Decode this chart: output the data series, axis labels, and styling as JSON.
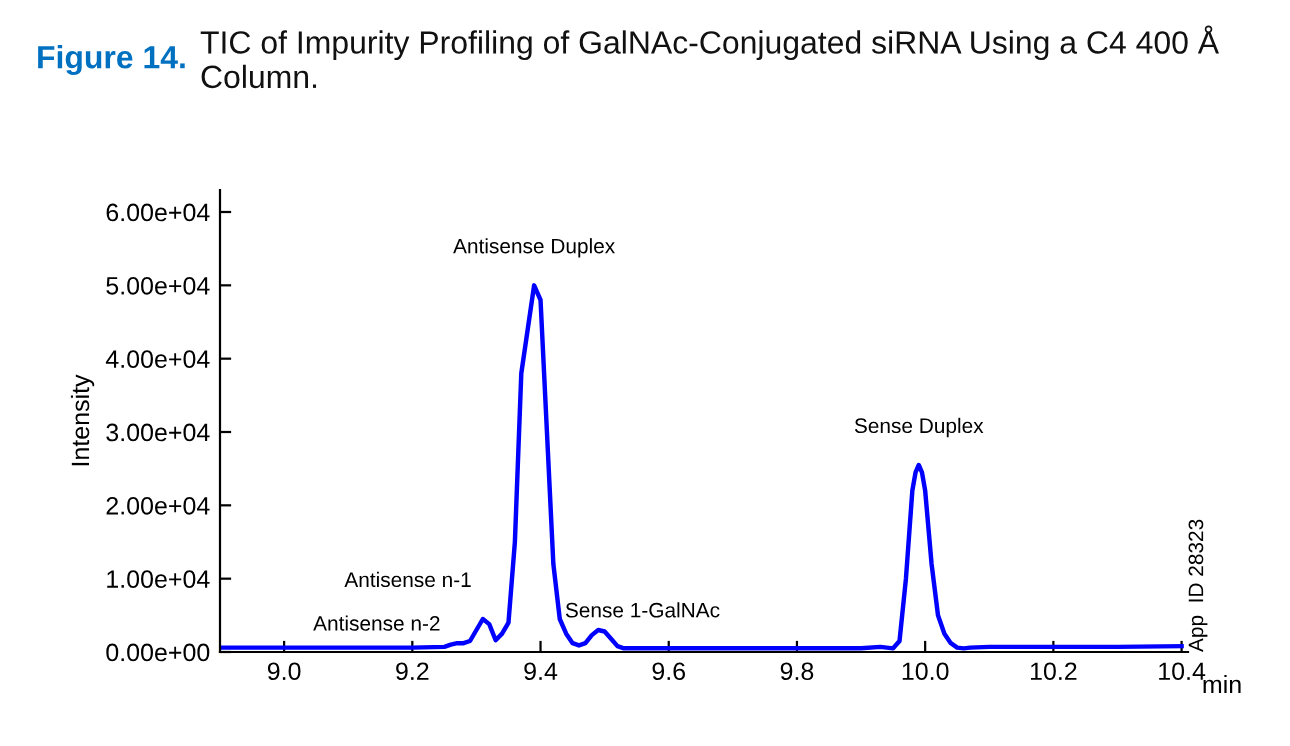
{
  "chart_data": {
    "type": "line",
    "title": "Figure 14.",
    "subtitle": "TIC of Impurity Profiling of GalNAc-Conjugated siRNA Using a C4 400 Å Column.",
    "xlabel": "min",
    "ylabel": "Intensity",
    "series": [
      {
        "color": "#0000ff",
        "x": [
          8.9,
          9.0,
          9.1,
          9.2,
          9.25,
          9.26,
          9.27,
          9.28,
          9.29,
          9.3,
          9.31,
          9.32,
          9.33,
          9.34,
          9.35,
          9.36,
          9.37,
          9.38,
          9.39,
          9.4,
          9.41,
          9.42,
          9.43,
          9.44,
          9.45,
          9.46,
          9.47,
          9.48,
          9.49,
          9.5,
          9.51,
          9.52,
          9.53,
          9.6,
          9.7,
          9.8,
          9.9,
          9.93,
          9.95,
          9.96,
          9.97,
          9.98,
          9.985,
          9.99,
          9.995,
          10.0,
          10.01,
          10.02,
          10.03,
          10.04,
          10.05,
          10.06,
          10.07,
          10.1,
          10.2,
          10.3,
          10.4
        ],
        "values": [
          600,
          600,
          600,
          600,
          700,
          1000,
          1200,
          1200,
          1500,
          3000,
          4500,
          3800,
          1600,
          2500,
          4000,
          15000,
          38000,
          44000,
          50000,
          48000,
          30000,
          12000,
          4500,
          2500,
          1200,
          900,
          1200,
          2300,
          3000,
          2800,
          1800,
          800,
          500,
          500,
          500,
          500,
          500,
          700,
          500,
          1500,
          10000,
          22000,
          24500,
          25500,
          24500,
          22000,
          12000,
          5000,
          2500,
          1200,
          600,
          500,
          600,
          700,
          700,
          700,
          800
        ]
      }
    ],
    "annotations": [
      {
        "text": "Antisense Duplex",
        "x": 9.39,
        "y": 50000
      },
      {
        "text": "Antisense n-1",
        "x": 9.31,
        "y": 4500
      },
      {
        "text": "Antisense n-2",
        "x": 9.27,
        "y": 1200
      },
      {
        "text": "Sense 1-GalNAc",
        "x": 9.49,
        "y": 3000
      },
      {
        "text": "Sense Duplex",
        "x": 9.99,
        "y": 25500
      },
      "App  ID 28323"
    ],
    "xlim": [
      8.9,
      10.41
    ],
    "ylim": [
      0,
      63000
    ],
    "xticks": [
      {
        "value": 9.0,
        "label": "9.0"
      },
      {
        "value": 9.2,
        "label": "9.2"
      },
      {
        "value": 9.4,
        "label": "9.4"
      },
      {
        "value": 9.6,
        "label": "9.6"
      },
      {
        "value": 9.8,
        "label": "9.8"
      },
      {
        "value": 10.0,
        "label": "10.0"
      },
      {
        "value": 10.2,
        "label": "10.2"
      },
      {
        "value": 10.4,
        "label": "10.4"
      }
    ],
    "yticks": [
      {
        "value": 0,
        "label": "0.00e+00"
      },
      {
        "value": 10000,
        "label": "1.00e+04"
      },
      {
        "value": 20000,
        "label": "2.00e+04"
      },
      {
        "value": 30000,
        "label": "3.00e+04"
      },
      {
        "value": 40000,
        "label": "4.00e+04"
      },
      {
        "value": 50000,
        "label": "5.00e+04"
      },
      {
        "value": 60000,
        "label": "6.00e+04"
      }
    ],
    "grid": false,
    "legend": false,
    "line_style": "solid",
    "marker": "none"
  }
}
